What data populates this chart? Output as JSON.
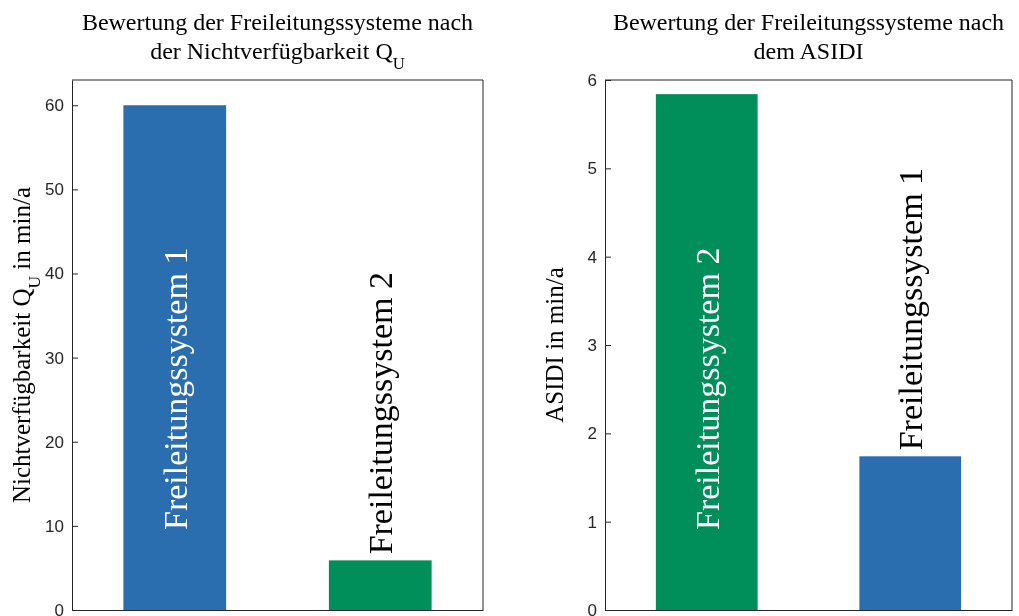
{
  "chart_data": [
    {
      "type": "bar",
      "title": "Bewertung der Freileitungssysteme nach der Nichtverfügbarkeit Q$_{U}$",
      "ylabel": "Nichtverfügbarkeit Q$_{U}$ in min/a",
      "categories": [
        "Freileitungssystem 1",
        "Freileitungssystem 2"
      ],
      "values": [
        60,
        5.9
      ],
      "colors": [
        "#2a6eaf",
        "#008f5a"
      ],
      "ylim": [
        0,
        63
      ],
      "yticks": [
        0,
        10,
        20,
        30,
        40,
        50,
        60
      ],
      "grid": false,
      "tick_labels": "y"
    },
    {
      "type": "bar",
      "title": "Bewertung der Freileitungssysteme nach dem ASIDI",
      "ylabel": "ASIDI in min/a",
      "categories": [
        "Freileitungssystem 2",
        "Freileitungssystem 1"
      ],
      "values": [
        5.84,
        1.74
      ],
      "colors": [
        "#008f5a",
        "#2a6eaf"
      ],
      "ylim": [
        0,
        6
      ],
      "yticks": [
        0,
        1,
        2,
        3,
        4,
        5,
        6
      ],
      "grid": false,
      "tick_labels": "y"
    }
  ]
}
